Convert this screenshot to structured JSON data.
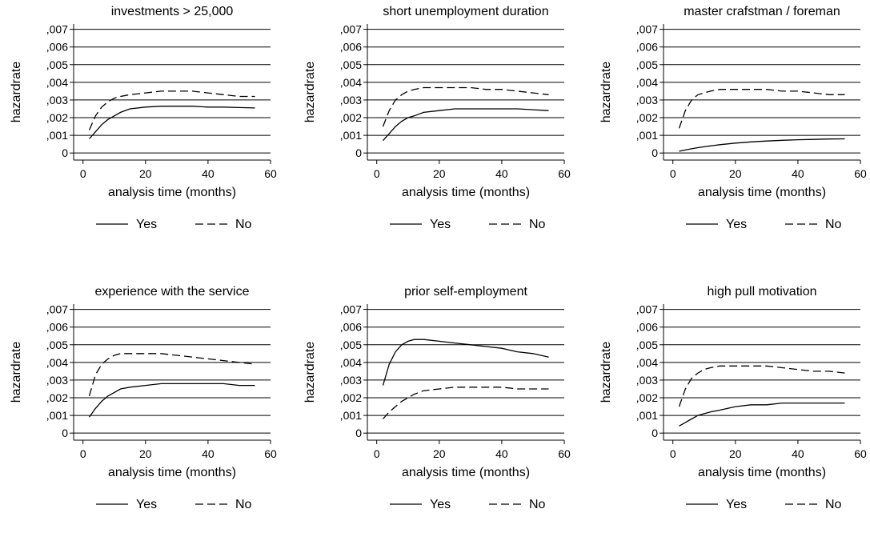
{
  "chart_data": [
    {
      "type": "line",
      "title": "investments > 25,000",
      "xlabel": "analysis time (months)",
      "ylabel": "hazardrate",
      "xlim": [
        -3,
        60
      ],
      "ylim": [
        -0.0004,
        0.0073
      ],
      "x_ticks": [
        0,
        20,
        40,
        60
      ],
      "x_tick_labels": [
        "0",
        "20",
        "40",
        "60"
      ],
      "y_ticks": [
        0,
        0.001,
        0.002,
        0.003,
        0.004,
        0.005,
        0.006,
        0.007
      ],
      "y_tick_labels": [
        "0",
        ",001",
        ",002",
        ",003",
        ",004",
        ",005",
        ",006",
        ",007"
      ],
      "grid": "horizontal",
      "legend_position": "bottom",
      "series": [
        {
          "name": "Yes",
          "dash": "solid",
          "x": [
            2,
            4,
            6,
            8,
            10,
            12,
            15,
            20,
            25,
            30,
            35,
            40,
            45,
            50,
            55
          ],
          "y": [
            0.0008,
            0.0012,
            0.0016,
            0.0019,
            0.0021,
            0.0023,
            0.0025,
            0.0026,
            0.00265,
            0.00265,
            0.00265,
            0.0026,
            0.0026,
            0.00257,
            0.00255
          ]
        },
        {
          "name": "No",
          "dash": "dashed",
          "x": [
            2,
            4,
            6,
            8,
            10,
            12,
            15,
            20,
            25,
            30,
            35,
            40,
            45,
            50,
            55
          ],
          "y": [
            0.0013,
            0.0021,
            0.0026,
            0.0029,
            0.0031,
            0.0032,
            0.0033,
            0.0034,
            0.0035,
            0.0035,
            0.0035,
            0.0034,
            0.0033,
            0.0032,
            0.0032
          ]
        }
      ]
    },
    {
      "type": "line",
      "title": "short unemployment duration",
      "xlabel": "analysis time (months)",
      "ylabel": "hazardrate",
      "xlim": [
        -3,
        60
      ],
      "ylim": [
        -0.0004,
        0.0073
      ],
      "x_ticks": [
        0,
        20,
        40,
        60
      ],
      "x_tick_labels": [
        "0",
        "20",
        "40",
        "60"
      ],
      "y_ticks": [
        0,
        0.001,
        0.002,
        0.003,
        0.004,
        0.005,
        0.006,
        0.007
      ],
      "y_tick_labels": [
        "0",
        ",001",
        ",002",
        ",003",
        ",004",
        ",005",
        ",006",
        ",007"
      ],
      "grid": "horizontal",
      "legend_position": "bottom",
      "series": [
        {
          "name": "Yes",
          "dash": "solid",
          "x": [
            2,
            4,
            6,
            8,
            10,
            12,
            15,
            20,
            25,
            30,
            35,
            40,
            45,
            50,
            55
          ],
          "y": [
            0.0007,
            0.0011,
            0.0015,
            0.0018,
            0.002,
            0.0021,
            0.0023,
            0.0024,
            0.0025,
            0.0025,
            0.0025,
            0.0025,
            0.0025,
            0.00245,
            0.0024
          ]
        },
        {
          "name": "No",
          "dash": "dashed",
          "x": [
            2,
            4,
            6,
            8,
            10,
            12,
            15,
            20,
            25,
            30,
            35,
            40,
            45,
            50,
            55
          ],
          "y": [
            0.0015,
            0.0024,
            0.003,
            0.0033,
            0.0035,
            0.0036,
            0.0037,
            0.0037,
            0.0037,
            0.0037,
            0.0036,
            0.0036,
            0.0035,
            0.0034,
            0.0033
          ]
        }
      ]
    },
    {
      "type": "line",
      "title": "master crafstman / foreman",
      "xlabel": "analysis time (months)",
      "ylabel": "hazardrate",
      "xlim": [
        -3,
        60
      ],
      "ylim": [
        -0.0004,
        0.0073
      ],
      "x_ticks": [
        0,
        20,
        40,
        60
      ],
      "x_tick_labels": [
        "0",
        "20",
        "40",
        "60"
      ],
      "y_ticks": [
        0,
        0.001,
        0.002,
        0.003,
        0.004,
        0.005,
        0.006,
        0.007
      ],
      "y_tick_labels": [
        "0",
        ",001",
        ",002",
        ",003",
        ",004",
        ",005",
        ",006",
        ",007"
      ],
      "grid": "horizontal",
      "legend_position": "bottom",
      "series": [
        {
          "name": "Yes",
          "dash": "solid",
          "x": [
            2,
            4,
            6,
            8,
            10,
            12,
            15,
            20,
            25,
            30,
            35,
            40,
            45,
            50,
            55
          ],
          "y": [
            0.0001,
            0.00017,
            0.00024,
            0.0003,
            0.00035,
            0.0004,
            0.00047,
            0.00056,
            0.00063,
            0.00068,
            0.00072,
            0.00075,
            0.00077,
            0.00079,
            0.0008
          ]
        },
        {
          "name": "No",
          "dash": "dashed",
          "x": [
            2,
            4,
            6,
            8,
            10,
            12,
            15,
            20,
            25,
            30,
            35,
            40,
            45,
            50,
            55
          ],
          "y": [
            0.0014,
            0.0024,
            0.003,
            0.0033,
            0.0034,
            0.0035,
            0.0036,
            0.0036,
            0.0036,
            0.0036,
            0.0035,
            0.0035,
            0.0034,
            0.0033,
            0.0033
          ]
        }
      ]
    },
    {
      "type": "line",
      "title": "experience with the service",
      "xlabel": "analysis time (months)",
      "ylabel": "hazardrate",
      "xlim": [
        -3,
        60
      ],
      "ylim": [
        -0.0004,
        0.0073
      ],
      "x_ticks": [
        0,
        20,
        40,
        60
      ],
      "x_tick_labels": [
        "0",
        "20",
        "40",
        "60"
      ],
      "y_ticks": [
        0,
        0.001,
        0.002,
        0.003,
        0.004,
        0.005,
        0.006,
        0.007
      ],
      "y_tick_labels": [
        "0",
        ",001",
        ",002",
        ",003",
        ",004",
        ",005",
        ",006",
        ",007"
      ],
      "grid": "horizontal",
      "legend_position": "bottom",
      "series": [
        {
          "name": "Yes",
          "dash": "solid",
          "x": [
            2,
            4,
            6,
            8,
            10,
            12,
            15,
            20,
            25,
            30,
            35,
            40,
            45,
            50,
            55
          ],
          "y": [
            0.0009,
            0.0014,
            0.0018,
            0.0021,
            0.0023,
            0.0025,
            0.0026,
            0.0027,
            0.0028,
            0.0028,
            0.0028,
            0.0028,
            0.0028,
            0.0027,
            0.0027
          ]
        },
        {
          "name": "No",
          "dash": "dashed",
          "x": [
            2,
            4,
            6,
            8,
            10,
            12,
            15,
            20,
            25,
            30,
            35,
            40,
            45,
            50,
            55
          ],
          "y": [
            0.0021,
            0.0033,
            0.0039,
            0.0042,
            0.0044,
            0.0045,
            0.0045,
            0.0045,
            0.0045,
            0.0044,
            0.0043,
            0.0042,
            0.0041,
            0.004,
            0.0039
          ]
        }
      ]
    },
    {
      "type": "line",
      "title": "prior self-employment",
      "xlabel": "analysis time (months)",
      "ylabel": "hazardrate",
      "xlim": [
        -3,
        60
      ],
      "ylim": [
        -0.0004,
        0.0073
      ],
      "x_ticks": [
        0,
        20,
        40,
        60
      ],
      "x_tick_labels": [
        "0",
        "20",
        "40",
        "60"
      ],
      "y_ticks": [
        0,
        0.001,
        0.002,
        0.003,
        0.004,
        0.005,
        0.006,
        0.007
      ],
      "y_tick_labels": [
        "0",
        ",001",
        ",002",
        ",003",
        ",004",
        ",005",
        ",006",
        ",007"
      ],
      "grid": "horizontal",
      "legend_position": "bottom",
      "series": [
        {
          "name": "Yes",
          "dash": "solid",
          "x": [
            2,
            4,
            6,
            8,
            10,
            12,
            15,
            20,
            25,
            30,
            35,
            40,
            45,
            50,
            55
          ],
          "y": [
            0.0027,
            0.0039,
            0.0046,
            0.005,
            0.0052,
            0.0053,
            0.0053,
            0.0052,
            0.0051,
            0.005,
            0.0049,
            0.0048,
            0.0046,
            0.0045,
            0.0043
          ]
        },
        {
          "name": "No",
          "dash": "dashed",
          "x": [
            2,
            4,
            6,
            8,
            10,
            12,
            15,
            20,
            25,
            30,
            35,
            40,
            45,
            50,
            55
          ],
          "y": [
            0.0008,
            0.0012,
            0.0015,
            0.0018,
            0.002,
            0.0022,
            0.0024,
            0.0025,
            0.0026,
            0.0026,
            0.0026,
            0.0026,
            0.0025,
            0.0025,
            0.0025
          ]
        }
      ]
    },
    {
      "type": "line",
      "title": "high pull motivation",
      "xlabel": "analysis time (months)",
      "ylabel": "hazardrate",
      "xlim": [
        -3,
        60
      ],
      "ylim": [
        -0.0004,
        0.0073
      ],
      "x_ticks": [
        0,
        20,
        40,
        60
      ],
      "x_tick_labels": [
        "0",
        "20",
        "40",
        "60"
      ],
      "y_ticks": [
        0,
        0.001,
        0.002,
        0.003,
        0.004,
        0.005,
        0.006,
        0.007
      ],
      "y_tick_labels": [
        "0",
        ",001",
        ",002",
        ",003",
        ",004",
        ",005",
        ",006",
        ",007"
      ],
      "grid": "horizontal",
      "legend_position": "bottom",
      "series": [
        {
          "name": "Yes",
          "dash": "solid",
          "x": [
            2,
            4,
            6,
            8,
            10,
            12,
            15,
            20,
            25,
            30,
            35,
            40,
            45,
            50,
            55
          ],
          "y": [
            0.0004,
            0.0006,
            0.0008,
            0.001,
            0.0011,
            0.0012,
            0.0013,
            0.0015,
            0.0016,
            0.0016,
            0.0017,
            0.0017,
            0.0017,
            0.0017,
            0.0017
          ]
        },
        {
          "name": "No",
          "dash": "dashed",
          "x": [
            2,
            4,
            6,
            8,
            10,
            12,
            15,
            20,
            25,
            30,
            35,
            40,
            45,
            50,
            55
          ],
          "y": [
            0.0015,
            0.0025,
            0.0031,
            0.0034,
            0.0036,
            0.0037,
            0.0038,
            0.0038,
            0.0038,
            0.0038,
            0.0037,
            0.0036,
            0.0035,
            0.0035,
            0.0034
          ]
        }
      ]
    }
  ],
  "colors": {
    "line": "#000000",
    "grid": "#000000",
    "background": "#ffffff"
  }
}
